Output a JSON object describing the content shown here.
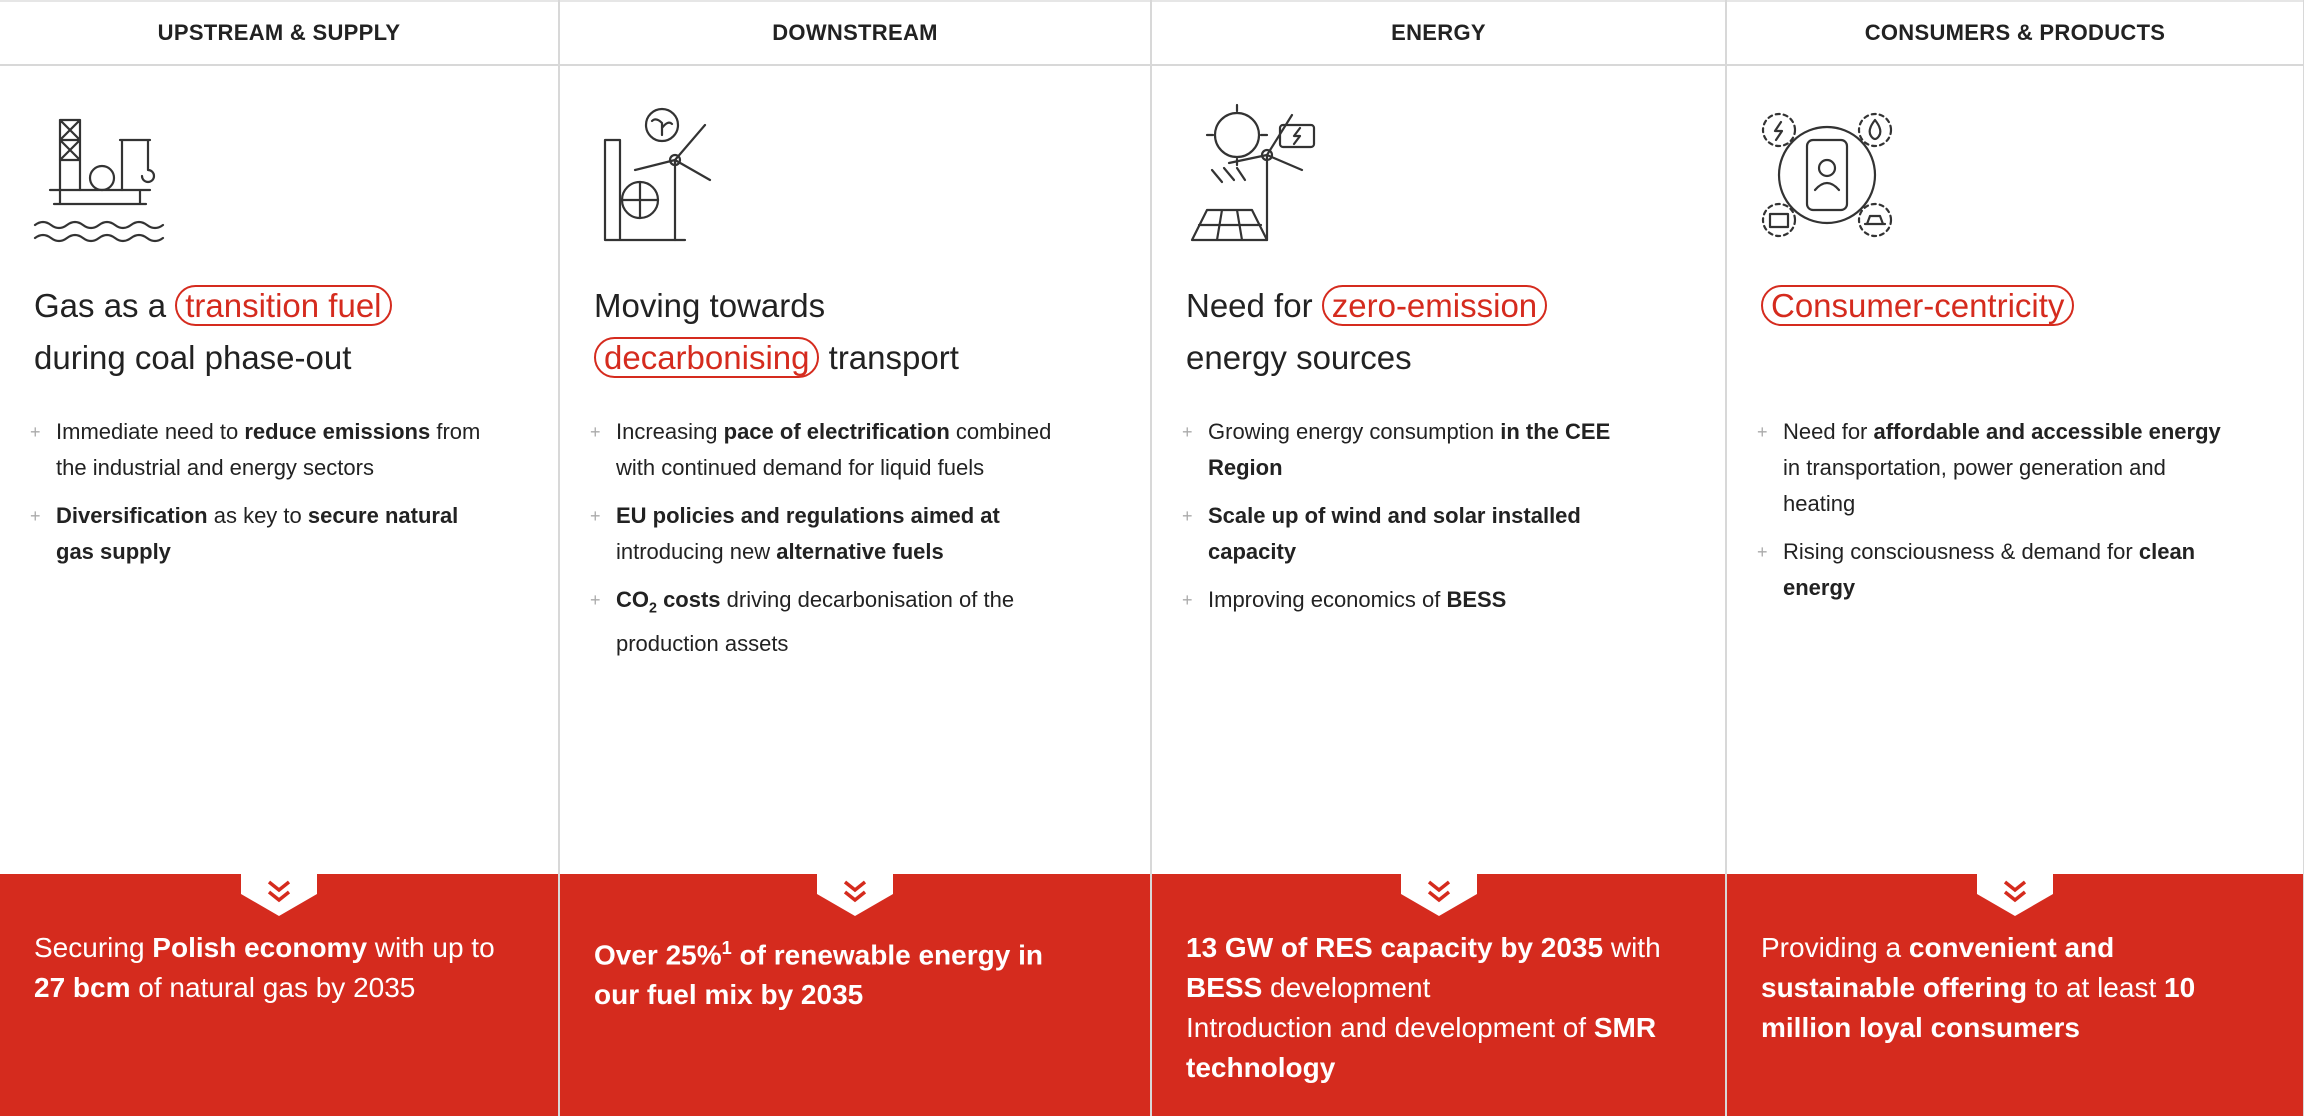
{
  "columns": [
    {
      "header": "UPSTREAM & SUPPLY",
      "headline": [
        [
          {
            "text": "Gas as a "
          },
          {
            "text": "transition fuel",
            "highlight": true
          }
        ],
        [
          {
            "text": "during coal phase-out"
          }
        ]
      ],
      "bullets": [
        [
          {
            "text": "Immediate need to "
          },
          {
            "text": "reduce emissions",
            "bold": true
          },
          {
            "text": " from the industrial and energy sectors"
          }
        ],
        [
          {
            "text": "Diversification",
            "bold": true
          },
          {
            "text": " as key to "
          },
          {
            "text": "secure natural gas supply",
            "bold": true
          }
        ]
      ],
      "footer": [
        [
          {
            "text": "Securing "
          },
          {
            "text": "Polish economy",
            "bold": true
          },
          {
            "text": " with up to "
          },
          {
            "text": "27 bcm",
            "bold": true
          },
          {
            "text": " of natural gas by 2035"
          }
        ]
      ]
    },
    {
      "header": "DOWNSTREAM",
      "headline": [
        [
          {
            "text": "Moving towards"
          }
        ],
        [
          {
            "text": "decarbonising",
            "highlight": true
          },
          {
            "text": " transport"
          }
        ]
      ],
      "bullets": [
        [
          {
            "text": "Increasing "
          },
          {
            "text": "pace of electrification",
            "bold": true
          },
          {
            "text": " combined with continued demand for liquid fuels"
          }
        ],
        [
          {
            "text": "EU policies and regulations aimed at",
            "bold": true
          },
          {
            "text": " introducing new "
          },
          {
            "text": "alternative fuels",
            "bold": true
          }
        ],
        [
          {
            "text": "CO",
            "bold": true
          },
          {
            "text": "2",
            "bold": true,
            "sub": true
          },
          {
            "text": " costs",
            "bold": true
          },
          {
            "text": " driving decarbonisation of the production assets"
          }
        ]
      ],
      "footer": [
        [
          {
            "text": "Over 25%",
            "bold": true
          },
          {
            "text": "1",
            "bold": true,
            "sup": true
          },
          {
            "text": " of renewable energy in our fuel mix by 2035",
            "bold": true
          }
        ]
      ]
    },
    {
      "header": "ENERGY",
      "headline": [
        [
          {
            "text": "Need for "
          },
          {
            "text": "zero-emission",
            "highlight": true
          }
        ],
        [
          {
            "text": "energy sources"
          }
        ]
      ],
      "bullets": [
        [
          {
            "text": "Growing energy consumption "
          },
          {
            "text": "in the CEE Region",
            "bold": true
          }
        ],
        [
          {
            "text": "Scale up of wind and solar installed capacity",
            "bold": true
          }
        ],
        [
          {
            "text": "Improving economics of "
          },
          {
            "text": "BESS",
            "bold": true
          }
        ]
      ],
      "footer": [
        [
          {
            "text": "13 GW of RES capacity by 2035",
            "bold": true
          },
          {
            "text": " with "
          },
          {
            "text": "BESS",
            "bold": true
          },
          {
            "text": " development"
          }
        ],
        [
          {
            "text": "Introduction and development of "
          },
          {
            "text": "SMR technology",
            "bold": true
          }
        ]
      ]
    },
    {
      "header": "CONSUMERS & PRODUCTS",
      "headline": [
        [
          {
            "text": "Consumer-centricity",
            "highlight": true
          }
        ]
      ],
      "bullets": [
        [
          {
            "text": "Need for "
          },
          {
            "text": "affordable and accessible energy",
            "bold": true
          },
          {
            "text": " in transportation, power generation and heating"
          }
        ],
        [
          {
            "text": "Rising consciousness & demand for "
          },
          {
            "text": "clean energy",
            "bold": true
          }
        ]
      ],
      "footer": [
        [
          {
            "text": "Providing a "
          },
          {
            "text": "convenient and sustainable offering",
            "bold": true
          },
          {
            "text": " to at least "
          },
          {
            "text": "10 million loyal consumers",
            "bold": true
          }
        ]
      ]
    }
  ]
}
